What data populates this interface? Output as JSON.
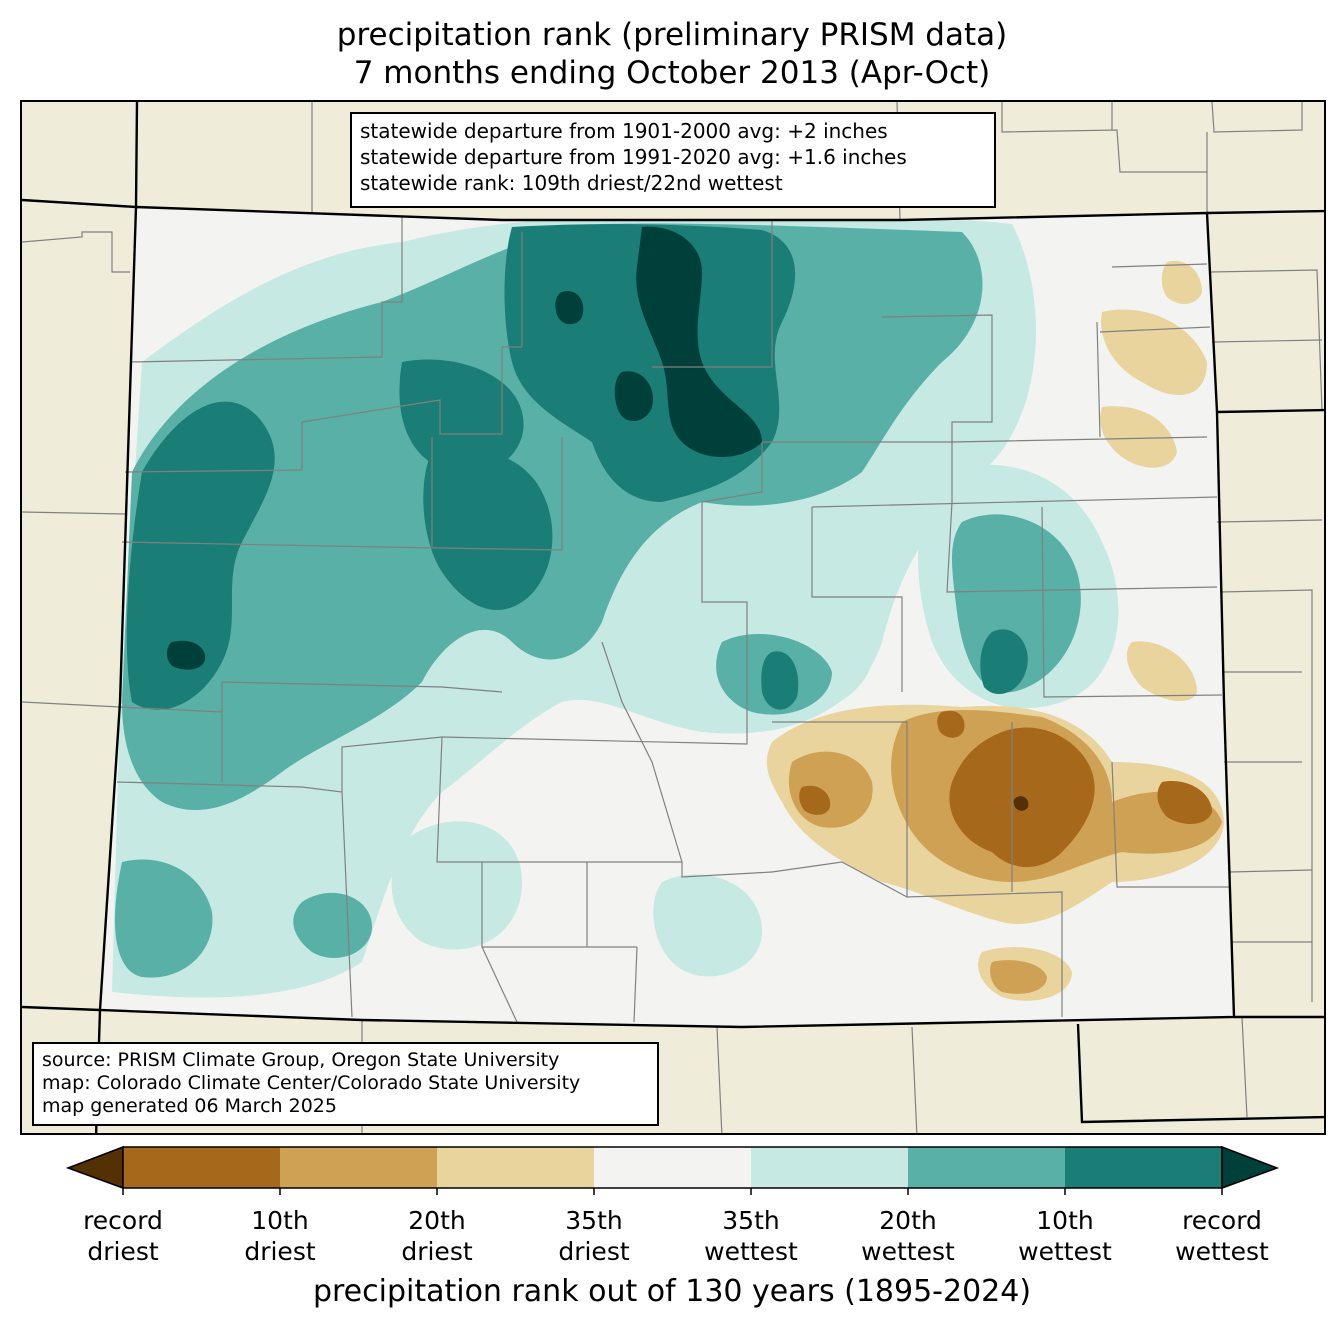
{
  "title": {
    "line1": "precipitation rank (preliminary PRISM data)",
    "line2": "7 months ending October 2013 (Apr-Oct)"
  },
  "stats": {
    "line1": "statewide departure from 1901-2000 avg: +2 inches",
    "line2": "statewide departure from 1991-2020 avg: +1.6 inches",
    "line3": "statewide rank: 109th driest/22nd wettest"
  },
  "source": {
    "line1": "source: PRISM Climate Group, Oregon State University",
    "line2": "map: Colorado Climate Center/Colorado State University",
    "line3": "map generated 06 March 2025"
  },
  "colorbar": {
    "colors": {
      "record_driest": "#543005",
      "c1": "#a6691c",
      "c2": "#cfa155",
      "c3": "#e8d49c",
      "c4": "#f3f4f2",
      "c5": "#c6e9e3",
      "c6": "#59b0a6",
      "c7": "#1a7d76",
      "record_wettest": "#00403a"
    },
    "ticks": [
      {
        "line1": "record",
        "line2": "driest"
      },
      {
        "line1": "10th",
        "line2": "driest"
      },
      {
        "line1": "20th",
        "line2": "driest"
      },
      {
        "line1": "35th",
        "line2": "driest"
      },
      {
        "line1": "35th",
        "line2": "wettest"
      },
      {
        "line1": "20th",
        "line2": "wettest"
      },
      {
        "line1": "10th",
        "line2": "wettest"
      },
      {
        "line1": "record",
        "line2": "wettest"
      }
    ],
    "label": "precipitation rank out of 130 years (1895-2024)"
  }
}
